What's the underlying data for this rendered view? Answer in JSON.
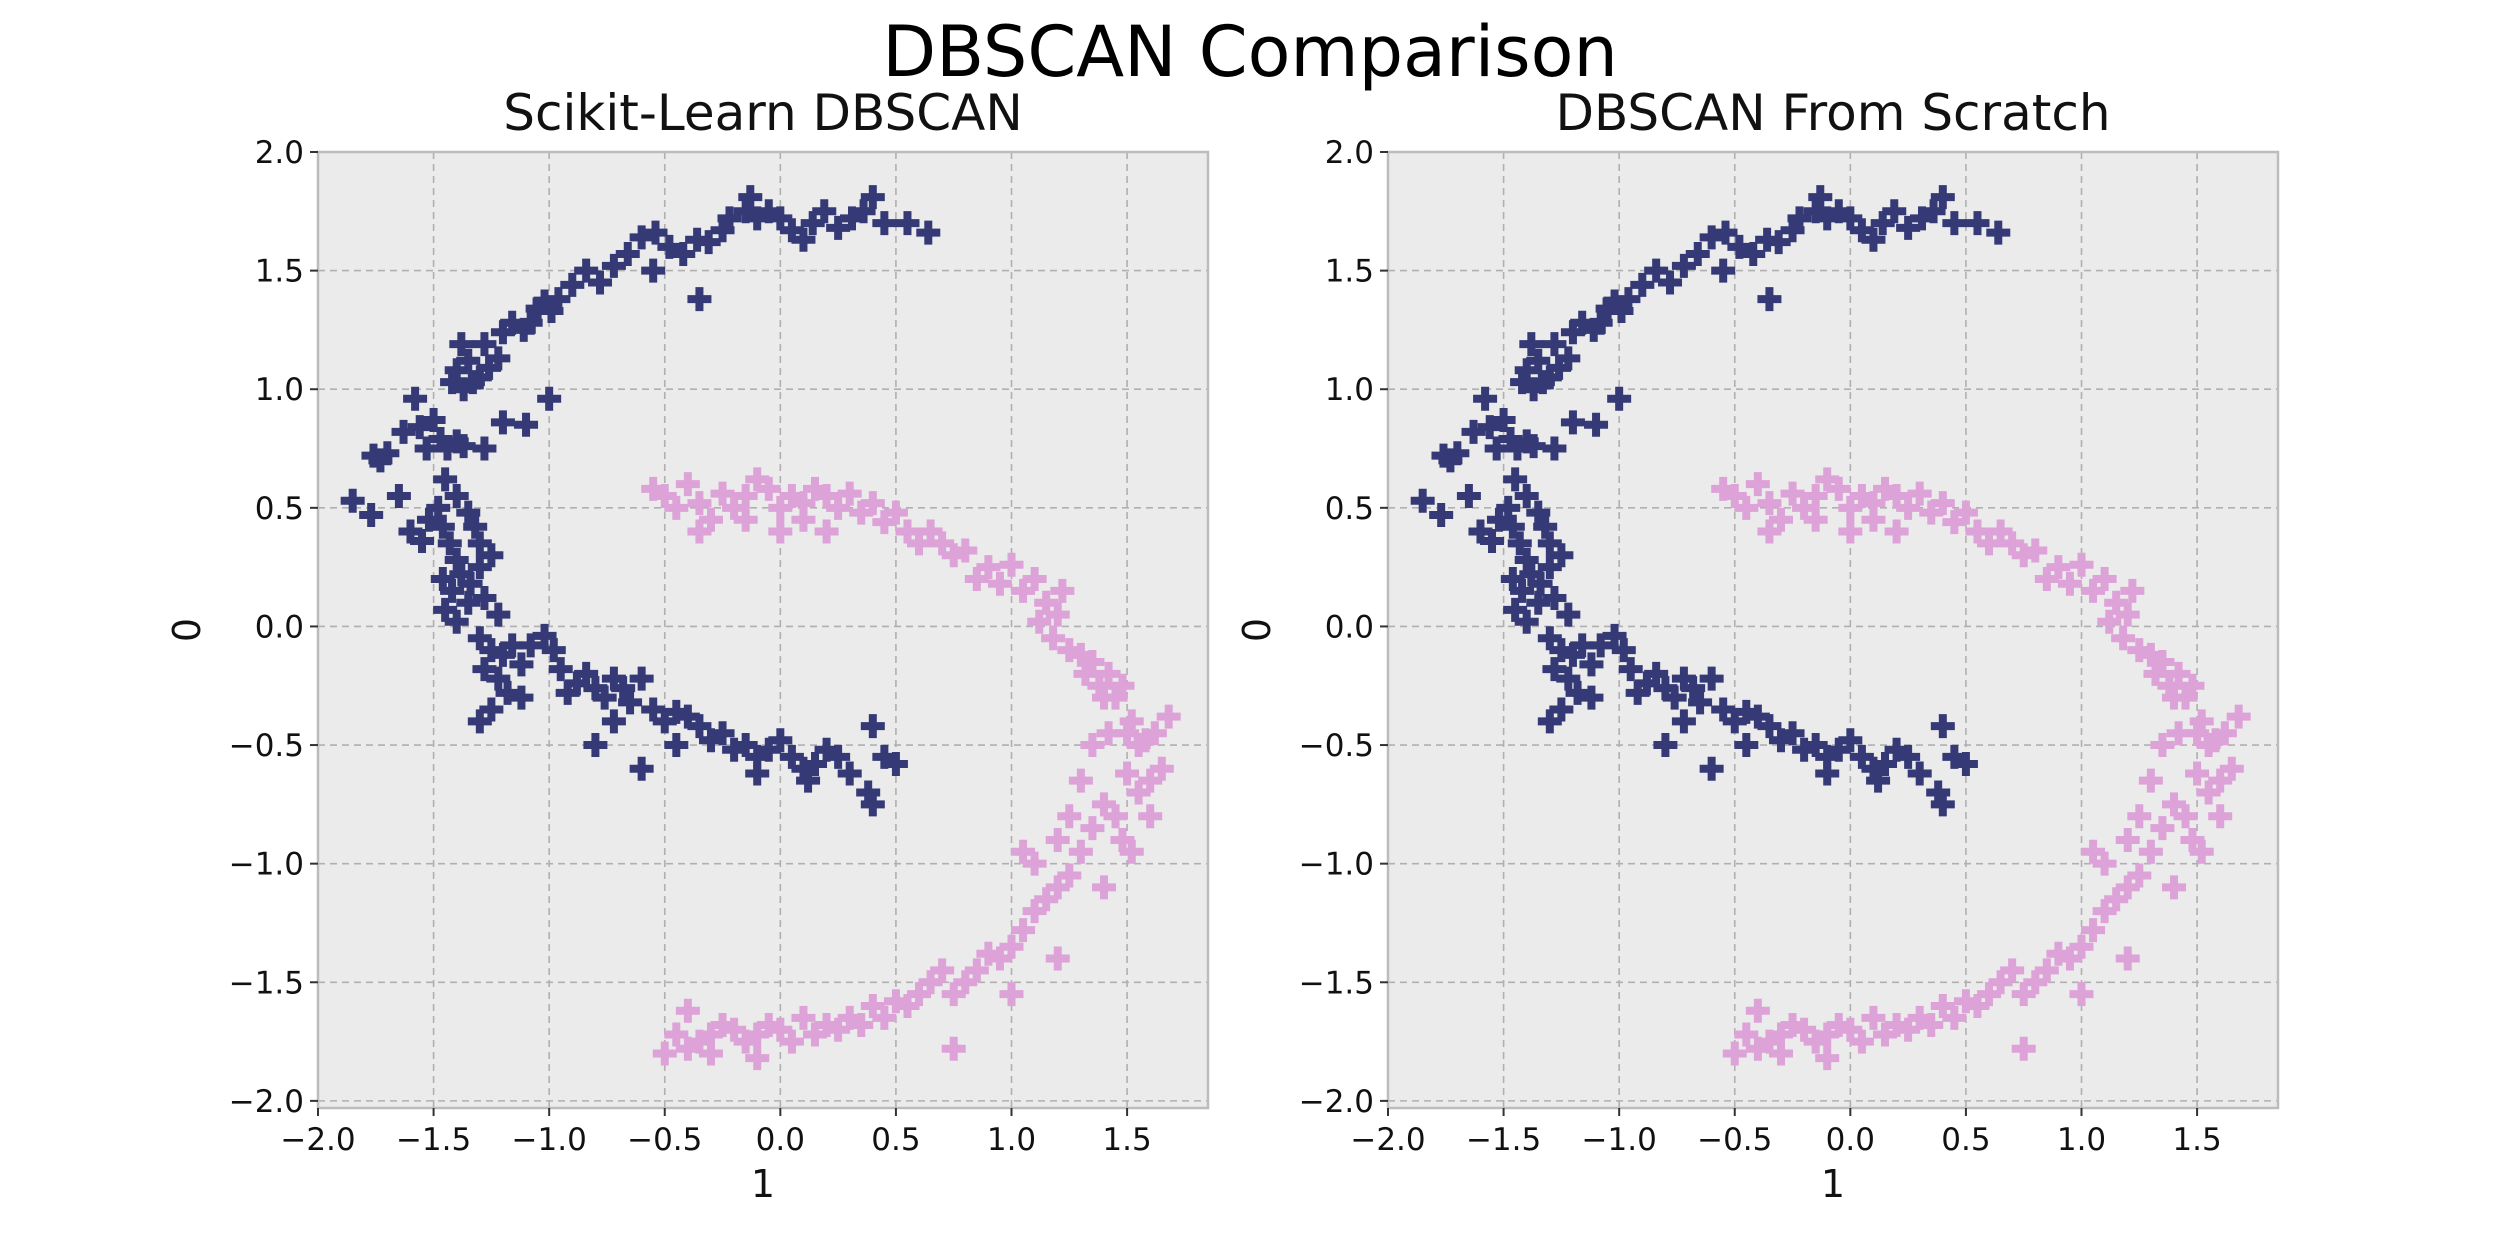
{
  "figure": {
    "suptitle": "DBSCAN Comparison"
  },
  "style": {
    "background": "#ebebeb",
    "grid_color": "#b0b0b0",
    "spine_color": "#bcbcbc",
    "marker": "plus",
    "cluster_colors": [
      "#353a76",
      "#dda2d8"
    ]
  },
  "chart_data": [
    {
      "type": "scatter",
      "title": "Scikit-Learn DBSCAN",
      "xlabel": "1",
      "ylabel": "0",
      "xlim": [
        -2.0,
        1.85
      ],
      "ylim": [
        -2.03,
        2.0
      ],
      "xticks": [
        -2.0,
        -1.5,
        -1.0,
        -0.5,
        0.0,
        0.5,
        1.0,
        1.5
      ],
      "yticks": [
        -2.0,
        -1.5,
        -1.0,
        -0.5,
        0.0,
        0.5,
        1.0,
        1.5,
        2.0
      ],
      "grid": true,
      "series": [
        {
          "cluster": 0,
          "points": [
            [
              -1.85,
              0.53
            ],
            [
              -1.76,
              0.72
            ],
            [
              -1.73,
              0.7
            ],
            [
              -1.7,
              0.73
            ],
            [
              -1.63,
              0.82
            ],
            [
              -1.58,
              0.96
            ],
            [
              -1.56,
              0.84
            ],
            [
              -1.53,
              0.75
            ],
            [
              -1.5,
              0.87
            ],
            [
              -1.47,
              0.79
            ],
            [
              -1.44,
              0.75
            ],
            [
              -1.4,
              0.78
            ],
            [
              -1.37,
              0.76
            ],
            [
              -1.42,
              1.03
            ],
            [
              -1.4,
              1.08
            ],
            [
              -1.37,
              1.0
            ],
            [
              -1.33,
              1.03
            ],
            [
              -1.3,
              1.05
            ],
            [
              -1.38,
              1.19
            ],
            [
              -1.35,
              1.12
            ],
            [
              -1.26,
              1.09
            ],
            [
              -1.22,
              1.13
            ],
            [
              -1.28,
              1.19
            ],
            [
              -1.2,
              1.24
            ],
            [
              -1.16,
              1.28
            ],
            [
              -1.11,
              1.25
            ],
            [
              -1.08,
              1.28
            ],
            [
              -1.05,
              1.34
            ],
            [
              -1.02,
              1.37
            ],
            [
              -0.99,
              1.33
            ],
            [
              -0.96,
              1.38
            ],
            [
              -0.9,
              1.44
            ],
            [
              -0.84,
              1.5
            ],
            [
              -0.78,
              1.45
            ],
            [
              -0.72,
              1.52
            ],
            [
              -0.66,
              1.57
            ],
            [
              -0.6,
              1.64
            ],
            [
              -0.54,
              1.66
            ],
            [
              -0.48,
              1.6
            ],
            [
              -0.42,
              1.57
            ],
            [
              -0.36,
              1.63
            ],
            [
              -0.31,
              1.62
            ],
            [
              -0.25,
              1.67
            ],
            [
              -0.22,
              1.72
            ],
            [
              -0.15,
              1.75
            ],
            [
              -0.13,
              1.81
            ],
            [
              -0.1,
              1.72
            ],
            [
              -0.05,
              1.75
            ],
            [
              0.0,
              1.72
            ],
            [
              0.05,
              1.67
            ],
            [
              0.1,
              1.63
            ],
            [
              0.14,
              1.7
            ],
            [
              0.19,
              1.75
            ],
            [
              0.25,
              1.68
            ],
            [
              0.31,
              1.72
            ],
            [
              0.36,
              1.75
            ],
            [
              0.4,
              1.81
            ],
            [
              0.45,
              1.7
            ],
            [
              0.55,
              1.7
            ],
            [
              0.64,
              1.66
            ],
            [
              -0.35,
              1.38
            ],
            [
              -0.55,
              1.5
            ],
            [
              -1.0,
              0.96
            ],
            [
              -1.1,
              0.85
            ],
            [
              -1.2,
              0.86
            ],
            [
              -1.28,
              0.75
            ],
            [
              -1.77,
              0.47
            ],
            [
              -1.65,
              0.55
            ],
            [
              -1.6,
              0.4
            ],
            [
              -1.55,
              0.36
            ],
            [
              -1.52,
              0.45
            ],
            [
              -1.48,
              0.5
            ],
            [
              -1.46,
              0.42
            ],
            [
              -1.43,
              0.35
            ],
            [
              -1.4,
              0.28
            ],
            [
              -1.45,
              0.62
            ],
            [
              -1.4,
              0.55
            ],
            [
              -1.35,
              0.48
            ],
            [
              -1.32,
              0.42
            ],
            [
              -1.3,
              0.35
            ],
            [
              -1.46,
              0.2
            ],
            [
              -1.42,
              0.15
            ],
            [
              -1.38,
              0.22
            ],
            [
              -1.34,
              0.18
            ],
            [
              -1.3,
              0.25
            ],
            [
              -1.25,
              0.3
            ],
            [
              -1.45,
              0.07
            ],
            [
              -1.4,
              0.02
            ],
            [
              -1.35,
              0.1
            ],
            [
              -1.28,
              0.12
            ],
            [
              -1.22,
              0.05
            ],
            [
              -1.3,
              -0.05
            ],
            [
              -1.25,
              -0.1
            ],
            [
              -1.2,
              -0.12
            ],
            [
              -1.16,
              -0.08
            ],
            [
              -1.12,
              -0.16
            ],
            [
              -1.08,
              -0.08
            ],
            [
              -1.28,
              -0.18
            ],
            [
              -1.22,
              -0.22
            ],
            [
              -1.18,
              -0.28
            ],
            [
              -1.12,
              -0.3
            ],
            [
              -1.25,
              -0.35
            ],
            [
              -1.3,
              -0.4
            ],
            [
              -1.02,
              -0.04
            ],
            [
              -0.98,
              -0.1
            ],
            [
              -0.95,
              -0.18
            ],
            [
              -0.92,
              -0.28
            ],
            [
              -0.88,
              -0.24
            ],
            [
              -0.84,
              -0.2
            ],
            [
              -0.8,
              -0.26
            ],
            [
              -0.76,
              -0.3
            ],
            [
              -0.72,
              -0.22
            ],
            [
              -0.68,
              -0.26
            ],
            [
              -0.65,
              -0.32
            ],
            [
              -0.6,
              -0.22
            ],
            [
              -0.55,
              -0.35
            ],
            [
              -0.5,
              -0.4
            ],
            [
              -0.45,
              -0.36
            ],
            [
              -0.4,
              -0.38
            ],
            [
              -0.35,
              -0.42
            ],
            [
              -0.3,
              -0.48
            ],
            [
              -0.25,
              -0.45
            ],
            [
              -0.2,
              -0.52
            ],
            [
              -0.15,
              -0.5
            ],
            [
              -0.1,
              -0.55
            ],
            [
              -0.05,
              -0.52
            ],
            [
              0.0,
              -0.48
            ],
            [
              0.05,
              -0.55
            ],
            [
              0.1,
              -0.6
            ],
            [
              0.15,
              -0.58
            ],
            [
              0.2,
              -0.52
            ],
            [
              0.25,
              -0.55
            ],
            [
              0.3,
              -0.62
            ],
            [
              0.4,
              -0.42
            ],
            [
              0.45,
              -0.55
            ],
            [
              0.5,
              -0.58
            ],
            [
              0.38,
              -0.7
            ],
            [
              0.4,
              -0.75
            ],
            [
              -0.1,
              -0.62
            ],
            [
              0.12,
              -0.65
            ],
            [
              -0.45,
              -0.5
            ],
            [
              -0.8,
              -0.5
            ],
            [
              -0.6,
              -0.6
            ],
            [
              -0.72,
              -0.4
            ]
          ]
        },
        {
          "cluster": 1,
          "points": [
            [
              -0.55,
              0.58
            ],
            [
              -0.5,
              0.55
            ],
            [
              -0.45,
              0.5
            ],
            [
              -0.4,
              0.6
            ],
            [
              -0.35,
              0.52
            ],
            [
              -0.3,
              0.45
            ],
            [
              -0.25,
              0.56
            ],
            [
              -0.2,
              0.5
            ],
            [
              -0.15,
              0.55
            ],
            [
              -0.1,
              0.62
            ],
            [
              -0.05,
              0.58
            ],
            [
              0.0,
              0.5
            ],
            [
              0.05,
              0.55
            ],
            [
              0.1,
              0.52
            ],
            [
              0.15,
              0.58
            ],
            [
              0.2,
              0.55
            ],
            [
              0.25,
              0.5
            ],
            [
              0.3,
              0.56
            ],
            [
              0.35,
              0.48
            ],
            [
              0.4,
              0.52
            ],
            [
              0.45,
              0.44
            ],
            [
              0.5,
              0.48
            ],
            [
              0.55,
              0.4
            ],
            [
              0.1,
              0.45
            ],
            [
              0.2,
              0.4
            ],
            [
              -0.15,
              0.45
            ],
            [
              -0.35,
              0.4
            ],
            [
              0.0,
              0.4
            ],
            [
              0.6,
              0.35
            ],
            [
              0.65,
              0.4
            ],
            [
              0.7,
              0.35
            ],
            [
              0.75,
              0.3
            ],
            [
              0.8,
              0.32
            ],
            [
              0.85,
              0.2
            ],
            [
              0.9,
              0.25
            ],
            [
              0.95,
              0.18
            ],
            [
              1.0,
              0.26
            ],
            [
              1.05,
              0.15
            ],
            [
              1.1,
              0.2
            ],
            [
              1.12,
              0.02
            ],
            [
              1.15,
              0.1
            ],
            [
              1.18,
              -0.05
            ],
            [
              1.2,
              0.05
            ],
            [
              1.22,
              0.15
            ],
            [
              1.25,
              -0.1
            ],
            [
              1.3,
              -0.12
            ],
            [
              1.32,
              -0.2
            ],
            [
              1.35,
              -0.15
            ],
            [
              1.38,
              -0.25
            ],
            [
              1.4,
              -0.3
            ],
            [
              1.42,
              -0.2
            ],
            [
              1.45,
              -0.3
            ],
            [
              1.48,
              -0.25
            ],
            [
              1.5,
              -0.45
            ],
            [
              1.52,
              -0.4
            ],
            [
              1.55,
              -0.5
            ],
            [
              1.58,
              -0.48
            ],
            [
              1.62,
              -0.45
            ],
            [
              1.6,
              -0.65
            ],
            [
              1.55,
              -0.7
            ],
            [
              1.5,
              -0.62
            ],
            [
              1.45,
              -0.8
            ],
            [
              1.48,
              -0.9
            ],
            [
              1.52,
              -0.95
            ],
            [
              1.4,
              -0.75
            ],
            [
              1.35,
              -0.85
            ],
            [
              1.3,
              -0.95
            ],
            [
              1.25,
              -1.05
            ],
            [
              1.2,
              -1.1
            ],
            [
              1.15,
              -1.15
            ],
            [
              1.1,
              -1.2
            ],
            [
              1.05,
              -1.28
            ],
            [
              1.0,
              -1.35
            ],
            [
              0.95,
              -1.4
            ],
            [
              0.9,
              -1.38
            ],
            [
              0.85,
              -1.45
            ],
            [
              0.8,
              -1.5
            ],
            [
              0.75,
              -1.55
            ],
            [
              0.7,
              -1.45
            ],
            [
              0.65,
              -1.5
            ],
            [
              0.6,
              -1.55
            ],
            [
              0.55,
              -1.6
            ],
            [
              0.5,
              -1.58
            ],
            [
              0.45,
              -1.65
            ],
            [
              0.4,
              -1.6
            ],
            [
              0.35,
              -1.68
            ],
            [
              0.3,
              -1.65
            ],
            [
              0.25,
              -1.7
            ],
            [
              0.2,
              -1.68
            ],
            [
              0.15,
              -1.72
            ],
            [
              0.1,
              -1.65
            ],
            [
              0.05,
              -1.75
            ],
            [
              0.0,
              -1.7
            ],
            [
              -0.05,
              -1.68
            ],
            [
              -0.1,
              -1.72
            ],
            [
              -0.15,
              -1.75
            ],
            [
              -0.2,
              -1.7
            ],
            [
              -0.25,
              -1.68
            ],
            [
              -0.3,
              -1.72
            ],
            [
              -0.35,
              -1.75
            ],
            [
              -0.4,
              -1.78
            ],
            [
              -0.45,
              -1.72
            ],
            [
              -0.5,
              -1.8
            ],
            [
              -0.4,
              -1.62
            ],
            [
              -0.3,
              -1.8
            ],
            [
              -0.1,
              -1.82
            ],
            [
              0.75,
              -1.78
            ],
            [
              1.0,
              -1.55
            ],
            [
              1.2,
              -1.4
            ],
            [
              1.4,
              -1.1
            ],
            [
              1.6,
              -0.8
            ],
            [
              1.65,
              -0.6
            ],
            [
              1.68,
              -0.38
            ],
            [
              1.42,
              -0.45
            ],
            [
              1.3,
              -0.65
            ],
            [
              1.35,
              -0.5
            ],
            [
              1.25,
              -0.8
            ],
            [
              1.2,
              -0.9
            ],
            [
              1.1,
              -1.0
            ],
            [
              1.05,
              -0.95
            ]
          ]
        }
      ]
    },
    {
      "type": "scatter",
      "title": "DBSCAN From Scratch",
      "xlabel": "1",
      "ylabel": "0",
      "xlim": [
        -2.0,
        1.85
      ],
      "ylim": [
        -2.03,
        2.0
      ],
      "xticks": [
        -2.0,
        -1.5,
        -1.0,
        -0.5,
        0.0,
        0.5,
        1.0,
        1.5
      ],
      "yticks": [
        -2.0,
        -1.5,
        -1.0,
        -0.5,
        0.0,
        0.5,
        1.0,
        1.5,
        2.0
      ],
      "grid": true,
      "same_points_as_panel": 0
    }
  ]
}
